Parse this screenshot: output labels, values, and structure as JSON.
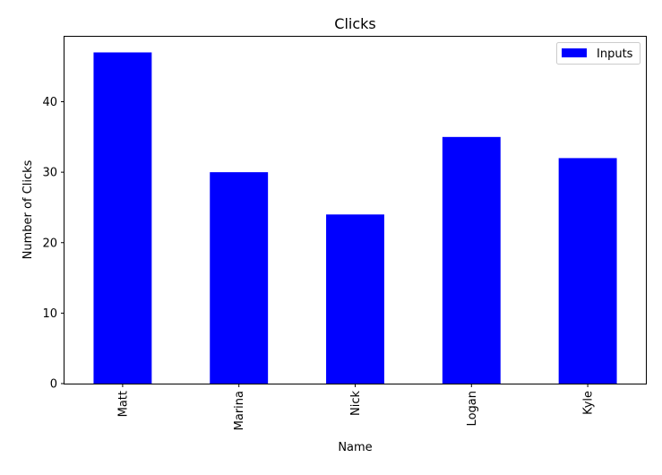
{
  "chart_data": {
    "type": "bar",
    "title": "Clicks",
    "xlabel": "Name",
    "ylabel": "Number of Clicks",
    "categories": [
      "Matt",
      "Marina",
      "Nick",
      "Logan",
      "Kyle"
    ],
    "series": [
      {
        "name": "Inputs",
        "values": [
          47,
          30,
          24,
          35,
          32
        ],
        "color": "#0000ff"
      }
    ],
    "ylim": [
      0,
      49.35
    ],
    "yticks": [
      0,
      10,
      20,
      30,
      40
    ],
    "grid": false,
    "legend": "top-right"
  }
}
